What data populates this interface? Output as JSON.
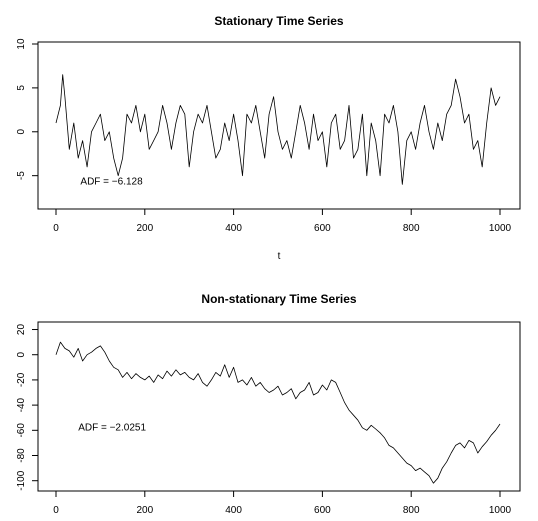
{
  "chart_data": [
    {
      "type": "line",
      "title": "Stationary Time Series",
      "xlabel": "t",
      "ylabel": "",
      "xlim": [
        0,
        1000
      ],
      "ylim": [
        -8,
        10
      ],
      "xticks": [
        0,
        200,
        400,
        600,
        800,
        1000
      ],
      "yticks": [
        -5,
        0,
        5,
        10
      ],
      "annotation": {
        "text": "ADF = −6.128",
        "x": 55,
        "y": -6
      },
      "series": [
        {
          "x": [
            0,
            10,
            15,
            20,
            30,
            40,
            50,
            60,
            70,
            80,
            90,
            100,
            110,
            120,
            130,
            140,
            150,
            160,
            170,
            180,
            190,
            200,
            210,
            220,
            230,
            240,
            250,
            260,
            270,
            280,
            290,
            300,
            310,
            320,
            330,
            340,
            350,
            360,
            370,
            380,
            390,
            400,
            410,
            420,
            430,
            440,
            450,
            460,
            470,
            480,
            490,
            500,
            510,
            520,
            530,
            540,
            550,
            560,
            570,
            580,
            590,
            600,
            610,
            620,
            630,
            640,
            650,
            660,
            670,
            680,
            690,
            700,
            710,
            720,
            730,
            740,
            750,
            760,
            770,
            780,
            790,
            800,
            810,
            820,
            830,
            840,
            850,
            860,
            870,
            880,
            890,
            900,
            910,
            920,
            930,
            940,
            950,
            960,
            970,
            980,
            990,
            1000
          ],
          "y": [
            1,
            3,
            6.5,
            4,
            -2,
            1,
            -3,
            -1,
            -4,
            0,
            1,
            2,
            -1,
            0,
            -3,
            -5,
            -3,
            2,
            1,
            3,
            0,
            2,
            -2,
            -1,
            0,
            3,
            1,
            -2,
            1,
            3,
            2,
            -4,
            0,
            2,
            1,
            3,
            0,
            -3,
            -2,
            1,
            -1,
            2,
            -1,
            -5,
            2,
            1,
            3,
            0,
            -3,
            2,
            4,
            0,
            -2,
            -1,
            -3,
            0,
            3,
            1,
            -2,
            2,
            -1,
            0,
            -4,
            1,
            2,
            -2,
            -1,
            3,
            -3,
            -2,
            2,
            -5,
            1,
            -1,
            -5,
            2,
            1,
            3,
            0,
            -6,
            -1,
            0,
            -2,
            1,
            3,
            0,
            -2,
            1,
            -1,
            2,
            3,
            6,
            4,
            1,
            2,
            -2,
            -1,
            -4,
            1,
            5,
            3,
            4
          ]
        }
      ]
    },
    {
      "type": "line",
      "title": "Non-stationary Time Series",
      "xlabel": "",
      "ylabel": "",
      "xlim": [
        0,
        1000
      ],
      "ylim": [
        -105,
        22
      ],
      "xticks": [
        0,
        200,
        400,
        600,
        800,
        1000
      ],
      "yticks": [
        -100,
        -80,
        -60,
        -40,
        -20,
        0,
        20
      ],
      "annotation": {
        "text": "ADF = −2.0251",
        "x": 50,
        "y": -60
      },
      "series": [
        {
          "x": [
            0,
            10,
            20,
            30,
            40,
            50,
            60,
            70,
            80,
            90,
            100,
            110,
            120,
            130,
            140,
            150,
            160,
            170,
            180,
            190,
            200,
            210,
            220,
            230,
            240,
            250,
            260,
            270,
            280,
            290,
            300,
            310,
            320,
            330,
            340,
            350,
            360,
            370,
            380,
            390,
            400,
            410,
            420,
            430,
            440,
            450,
            460,
            470,
            480,
            490,
            500,
            510,
            520,
            530,
            540,
            550,
            560,
            570,
            580,
            590,
            600,
            610,
            620,
            630,
            640,
            650,
            660,
            670,
            680,
            690,
            700,
            710,
            720,
            730,
            740,
            750,
            760,
            770,
            780,
            790,
            800,
            810,
            820,
            830,
            840,
            850,
            860,
            870,
            880,
            890,
            900,
            910,
            920,
            930,
            940,
            950,
            960,
            970,
            980,
            990,
            1000
          ],
          "y": [
            0,
            10,
            5,
            3,
            -2,
            5,
            -5,
            0,
            2,
            5,
            7,
            2,
            -5,
            -10,
            -12,
            -18,
            -14,
            -19,
            -15,
            -18,
            -20,
            -17,
            -22,
            -16,
            -19,
            -13,
            -17,
            -12,
            -16,
            -14,
            -18,
            -20,
            -15,
            -22,
            -25,
            -20,
            -14,
            -17,
            -8,
            -18,
            -10,
            -22,
            -20,
            -24,
            -18,
            -25,
            -22,
            -27,
            -30,
            -28,
            -25,
            -32,
            -30,
            -27,
            -35,
            -30,
            -28,
            -22,
            -32,
            -30,
            -24,
            -28,
            -20,
            -22,
            -30,
            -38,
            -44,
            -48,
            -52,
            -58,
            -60,
            -56,
            -59,
            -62,
            -66,
            -72,
            -74,
            -78,
            -82,
            -86,
            -88,
            -92,
            -90,
            -93,
            -96,
            -102,
            -98,
            -90,
            -85,
            -78,
            -72,
            -70,
            -74,
            -68,
            -70,
            -78,
            -73,
            -69,
            -64,
            -60,
            -55
          ]
        }
      ]
    }
  ]
}
